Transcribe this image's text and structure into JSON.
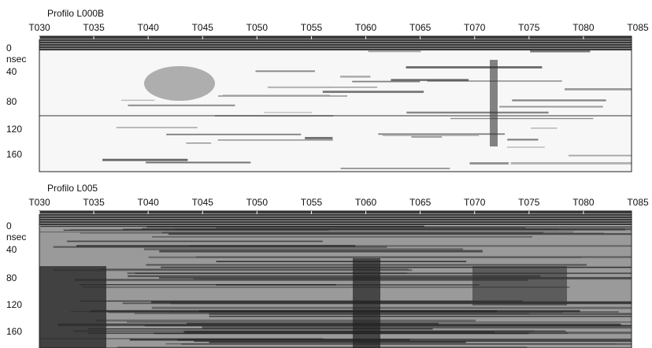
{
  "panels": [
    {
      "title": "Profilo L000B",
      "x_labels": [
        "T030",
        "T035",
        "T040",
        "T045",
        "T050",
        "T055",
        "T060",
        "T065",
        "T070",
        "T075",
        "T080",
        "T085"
      ],
      "y_labels": [
        "0",
        "nsec",
        "40",
        "80",
        "120",
        "160"
      ]
    },
    {
      "title": "Profilo L005",
      "x_labels": [
        "T030",
        "T035",
        "T040",
        "T045",
        "T050",
        "T055",
        "T060",
        "T065",
        "T070",
        "T075",
        "T080",
        "T085"
      ],
      "y_labels": [
        "0",
        "nsec",
        "40",
        "80",
        "120",
        "160"
      ]
    }
  ]
}
